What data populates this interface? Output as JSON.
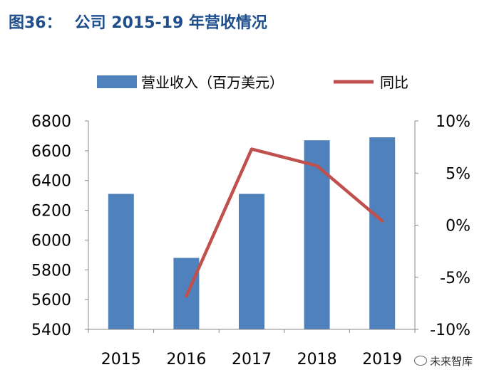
{
  "figure_label": "图36：",
  "figure_title": "公司 2015-19 年营收情况",
  "watermark": "未来智库",
  "watermark_icon": "wechat-icon",
  "chart_data": {
    "type": "bar+line",
    "categories": [
      "2015",
      "2016",
      "2017",
      "2018",
      "2019"
    ],
    "series": [
      {
        "name": "营业收入（百万美元）",
        "type": "bar",
        "axis": "left",
        "values": [
          6310,
          5880,
          6310,
          6670,
          6690
        ],
        "color": "#4f81bd"
      },
      {
        "name": "同比",
        "type": "line",
        "axis": "right",
        "values": [
          null,
          -6.8,
          7.3,
          5.7,
          0.4
        ],
        "color": "#c0504d"
      }
    ],
    "left_axis": {
      "min": 5400,
      "max": 6800,
      "step": 200,
      "ticks": [
        "5400",
        "5600",
        "5800",
        "6000",
        "6200",
        "6400",
        "6600",
        "6800"
      ]
    },
    "right_axis": {
      "min": -10,
      "max": 10,
      "step": 5,
      "ticks": [
        "-10%",
        "-5%",
        "0%",
        "5%",
        "10%"
      ]
    },
    "grid": false,
    "legend": "top"
  }
}
